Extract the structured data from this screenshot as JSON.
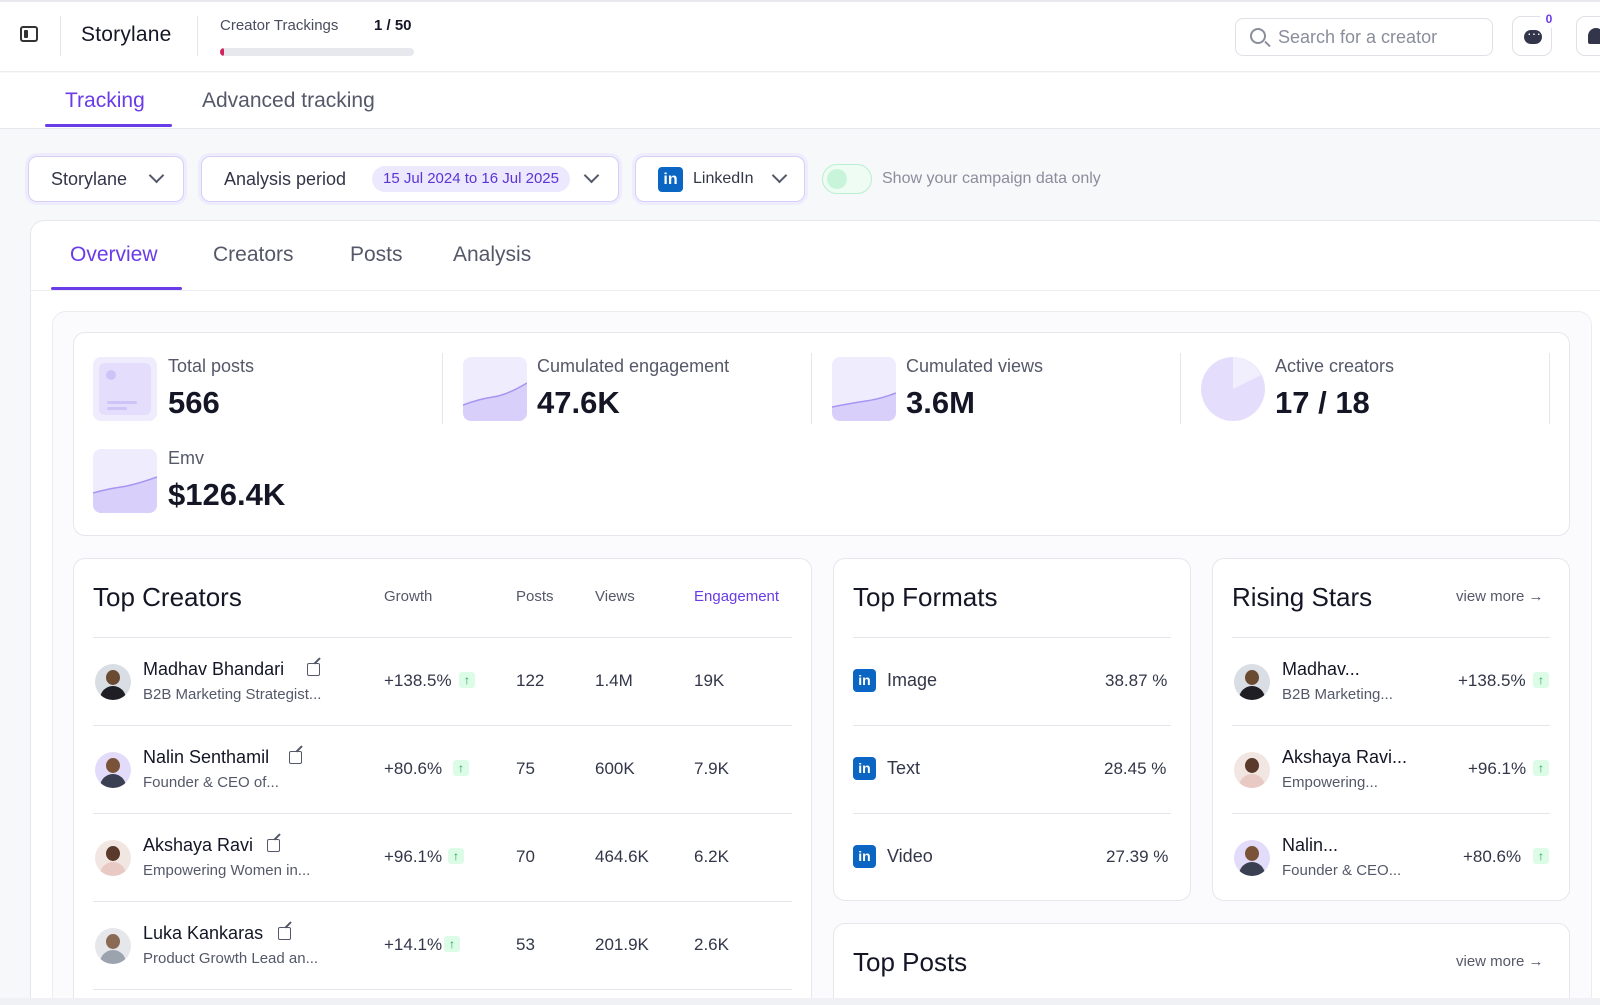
{
  "topbar": {
    "brand": "Storylane",
    "tracking_label": "Creator Trackings",
    "tracking_count": "1 / 50",
    "tracking_progress": 0.02,
    "search_placeholder": "Search for a creator",
    "notification_count": "0"
  },
  "main_tabs": [
    "Tracking",
    "Advanced tracking"
  ],
  "filters": {
    "brand_select": "Storylane",
    "period_label": "Analysis period",
    "period_value": "15 Jul 2024 to 16 Jul 2025",
    "platform": "LinkedIn",
    "platform_logo": "in",
    "toggle_label": "Show your campaign data only"
  },
  "sub_tabs": [
    "Overview",
    "Creators",
    "Posts",
    "Analysis"
  ],
  "stats": [
    {
      "label": "Total posts",
      "value": "566"
    },
    {
      "label": "Cumulated engagement",
      "value": "47.6K"
    },
    {
      "label": "Cumulated views",
      "value": "3.6M"
    },
    {
      "label": "Active creators",
      "value": "17 / 18"
    },
    {
      "label": "Emv",
      "value": "$126.4K"
    }
  ],
  "top_creators": {
    "title": "Top Creators",
    "columns": [
      "Growth",
      "Posts",
      "Views",
      "Engagement"
    ],
    "rows": [
      {
        "name": "Madhav Bhandari",
        "subtitle": "B2B Marketing Strategist...",
        "growth": "+138.5%",
        "posts": "122",
        "views": "1.4M",
        "engagement": "19K"
      },
      {
        "name": "Nalin Senthamil",
        "subtitle": "Founder & CEO of...",
        "growth": "+80.6%",
        "posts": "75",
        "views": "600K",
        "engagement": "7.9K"
      },
      {
        "name": "Akshaya Ravi",
        "subtitle": "Empowering Women in...",
        "growth": "+96.1%",
        "posts": "70",
        "views": "464.6K",
        "engagement": "6.2K"
      },
      {
        "name": "Luka Kankaras",
        "subtitle": "Product Growth Lead an...",
        "growth": "+14.1%",
        "posts": "53",
        "views": "201.9K",
        "engagement": "2.6K"
      }
    ]
  },
  "top_formats": {
    "title": "Top Formats",
    "rows": [
      {
        "name": "Image",
        "value": "38.87 %"
      },
      {
        "name": "Text",
        "value": "28.45 %"
      },
      {
        "name": "Video",
        "value": "27.39 %"
      }
    ]
  },
  "rising_stars": {
    "title": "Rising Stars",
    "view_more": "view more →",
    "rows": [
      {
        "name": "Madhav...",
        "subtitle": "B2B Marketing...",
        "growth": "+138.5%"
      },
      {
        "name": "Akshaya Ravi...",
        "subtitle": "Empowering...",
        "growth": "+96.1%"
      },
      {
        "name": "Nalin...",
        "subtitle": "Founder & CEO...",
        "growth": "+80.6%"
      }
    ]
  },
  "top_posts": {
    "title": "Top Posts",
    "view_more": "view more →"
  },
  "arrow_glyph": "↑",
  "colors": {
    "accent": "#6a3be8",
    "linkedin": "#0a66c2",
    "growth_green": "#16a34a",
    "progress": "#d1245c"
  }
}
